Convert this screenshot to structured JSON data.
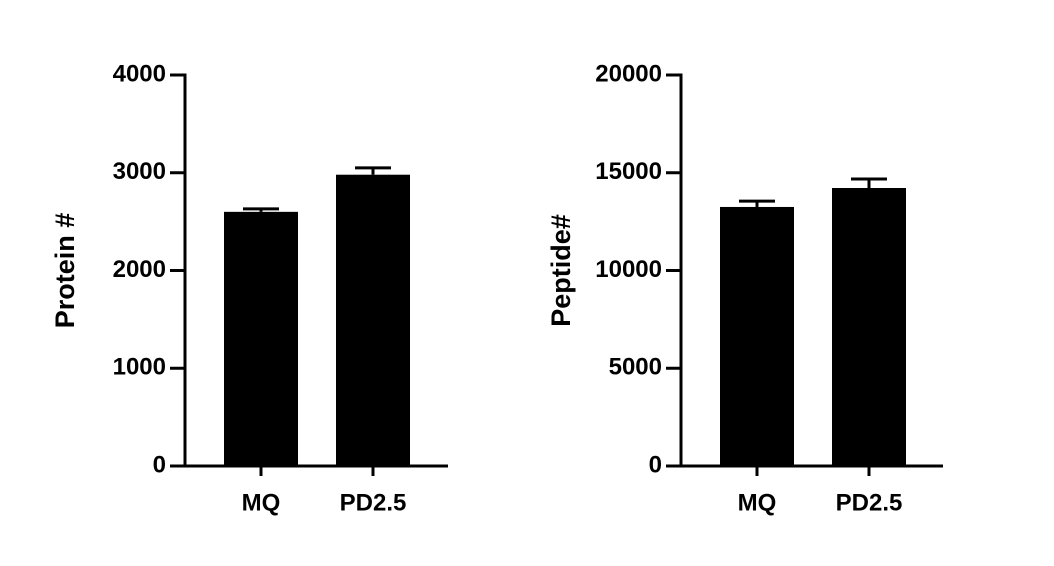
{
  "chart_data": [
    {
      "type": "bar",
      "ylabel": "Protein #",
      "categories": [
        "MQ",
        "PD2.5"
      ],
      "values": [
        2600,
        2980
      ],
      "errors": [
        30,
        70
      ],
      "color": "#000000",
      "ylim": [
        0,
        4000
      ],
      "yticks": [
        0,
        1000,
        2000,
        3000,
        4000
      ]
    },
    {
      "type": "bar",
      "ylabel": "Peptide#",
      "categories": [
        "MQ",
        "PD2.5"
      ],
      "values": [
        13250,
        14220
      ],
      "errors": [
        300,
        460
      ],
      "color": "#000000",
      "ylim": [
        0,
        20000
      ],
      "yticks": [
        0,
        5000,
        10000,
        15000,
        20000
      ]
    }
  ]
}
